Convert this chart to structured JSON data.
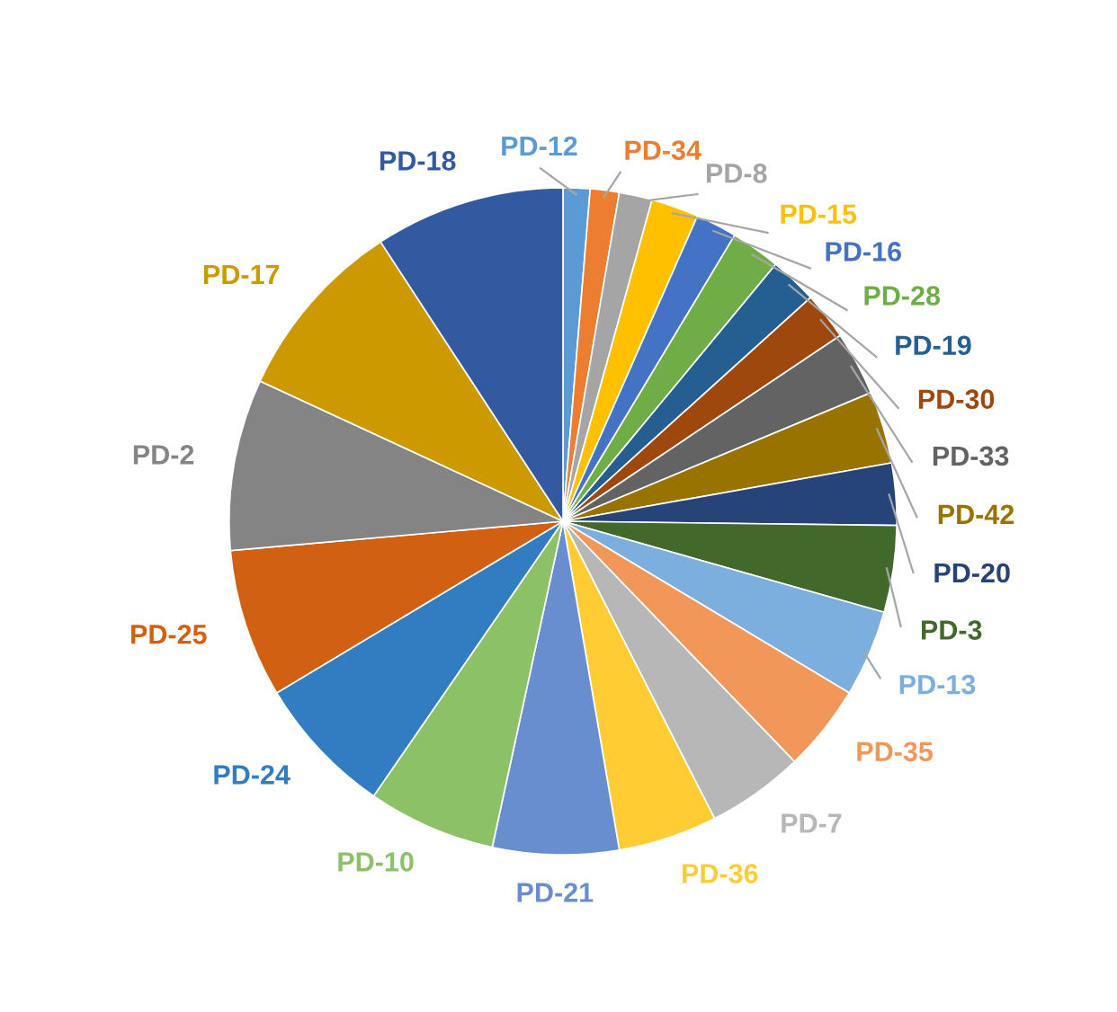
{
  "chart_data": {
    "type": "pie",
    "categories": [
      "PD-12",
      "PD-34",
      "PD-8",
      "PD-15",
      "PD-16",
      "PD-28",
      "PD-19",
      "PD-30",
      "PD-33",
      "PD-42",
      "PD-20",
      "PD-3",
      "PD-13",
      "PD-35",
      "PD-7",
      "PD-36",
      "PD-21",
      "PD-10",
      "PD-24",
      "PD-25",
      "PD-2",
      "PD-17",
      "PD-18"
    ],
    "values": [
      1.3,
      1.4,
      1.6,
      2.3,
      2.0,
      2.4,
      2.3,
      2.3,
      3.1,
      3.5,
      3.0,
      4.2,
      4.2,
      4.2,
      4.7,
      4.8,
      6.1,
      6.2,
      6.8,
      7.2,
      8.3,
      8.9,
      9.2
    ],
    "colors": [
      "#5b9bd5",
      "#ed7d31",
      "#a5a5a5",
      "#ffc000",
      "#4472c4",
      "#70ad47",
      "#255e91",
      "#9e480e",
      "#636363",
      "#997300",
      "#264478",
      "#43682b",
      "#7cafdd",
      "#f1975a",
      "#b7b7b7",
      "#ffcd33",
      "#698ed0",
      "#8cc168",
      "#327dc2",
      "#d26012",
      "#848484",
      "#cc9a00",
      "#335aa1"
    ]
  }
}
